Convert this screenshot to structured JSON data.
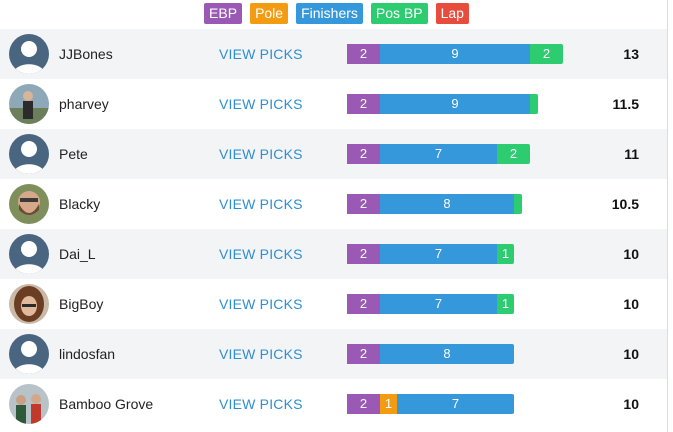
{
  "colors": {
    "ebp": "#9b59b6",
    "pole": "#f39c12",
    "finishers": "#3498db",
    "pos_bp": "#2ecc71",
    "lap": "#e74c3c"
  },
  "legend": [
    {
      "key": "ebp",
      "label": "EBP"
    },
    {
      "key": "pole",
      "label": "Pole"
    },
    {
      "key": "finishers",
      "label": "Finishers"
    },
    {
      "key": "pos_bp",
      "label": "Pos BP"
    },
    {
      "key": "lap",
      "label": "Lap"
    }
  ],
  "view_picks_label": "VIEW PICKS",
  "rows": [
    {
      "name": "JJBones",
      "score": "13",
      "avatar": "placeholder",
      "segments": [
        {
          "key": "ebp",
          "value": 2,
          "label": "2"
        },
        {
          "key": "finishers",
          "value": 9,
          "label": "9"
        },
        {
          "key": "pos_bp",
          "value": 2,
          "label": "2"
        }
      ]
    },
    {
      "name": "pharvey",
      "score": "11.5",
      "avatar": "photo-person-outdoors",
      "segments": [
        {
          "key": "ebp",
          "value": 2,
          "label": "2"
        },
        {
          "key": "finishers",
          "value": 9,
          "label": "9"
        },
        {
          "key": "pos_bp",
          "value": 0.5,
          "label": ""
        }
      ]
    },
    {
      "name": "Pete",
      "score": "11",
      "avatar": "placeholder",
      "segments": [
        {
          "key": "ebp",
          "value": 2,
          "label": "2"
        },
        {
          "key": "finishers",
          "value": 7,
          "label": "7"
        },
        {
          "key": "pos_bp",
          "value": 2,
          "label": "2"
        }
      ]
    },
    {
      "name": "Blacky",
      "score": "10.5",
      "avatar": "photo-bearded-man",
      "segments": [
        {
          "key": "ebp",
          "value": 2,
          "label": "2"
        },
        {
          "key": "finishers",
          "value": 8,
          "label": "8"
        },
        {
          "key": "pos_bp",
          "value": 0.5,
          "label": ""
        }
      ]
    },
    {
      "name": "Dai_L",
      "score": "10",
      "avatar": "placeholder",
      "segments": [
        {
          "key": "ebp",
          "value": 2,
          "label": "2"
        },
        {
          "key": "finishers",
          "value": 7,
          "label": "7"
        },
        {
          "key": "pos_bp",
          "value": 1,
          "label": "1"
        }
      ]
    },
    {
      "name": "BigBoy",
      "score": "10",
      "avatar": "photo-long-hair",
      "segments": [
        {
          "key": "ebp",
          "value": 2,
          "label": "2"
        },
        {
          "key": "finishers",
          "value": 7,
          "label": "7"
        },
        {
          "key": "pos_bp",
          "value": 1,
          "label": "1"
        }
      ]
    },
    {
      "name": "lindosfan",
      "score": "10",
      "avatar": "placeholder",
      "segments": [
        {
          "key": "ebp",
          "value": 2,
          "label": "2"
        },
        {
          "key": "finishers",
          "value": 8,
          "label": "8"
        }
      ]
    },
    {
      "name": "Bamboo Grove",
      "score": "10",
      "avatar": "photo-group",
      "segments": [
        {
          "key": "ebp",
          "value": 2,
          "label": "2"
        },
        {
          "key": "pole",
          "value": 1,
          "label": "1"
        },
        {
          "key": "finishers",
          "value": 7,
          "label": "7"
        }
      ]
    }
  ]
}
